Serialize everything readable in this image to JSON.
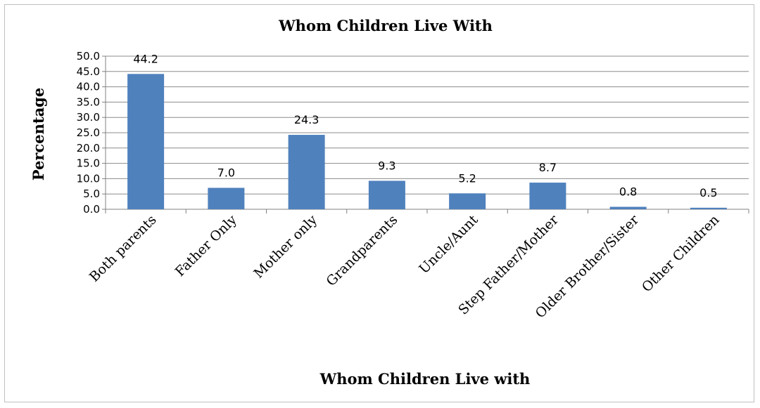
{
  "chart_data": {
    "type": "bar",
    "title": "Whom Children Live With",
    "xlabel": "Whom Children Live with",
    "ylabel": "Percentage",
    "categories": [
      "Both parents",
      "Father Only",
      "Mother only",
      "Grandparents",
      "Uncle/Aunt",
      "Step Father/Mother",
      "Older Brother/Sister",
      "Other Children"
    ],
    "values": [
      44.2,
      7.0,
      24.3,
      9.3,
      5.2,
      8.7,
      0.8,
      0.5
    ],
    "data_labels": [
      "44.2",
      "7.0",
      "24.3",
      "9.3",
      "5.2",
      "8.7",
      "0.8",
      "0.5"
    ],
    "yticks": [
      "0.0",
      "5.0",
      "10.0",
      "15.0",
      "20.0",
      "25.0",
      "30.0",
      "35.0",
      "40.0",
      "45.0",
      "50.0"
    ],
    "ylim": [
      0,
      50
    ],
    "grid": true,
    "legend": "none",
    "bar_color": "#4f81bd"
  }
}
